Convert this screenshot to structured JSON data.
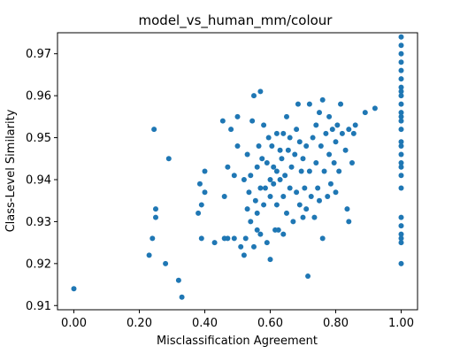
{
  "chart_data": {
    "type": "scatter",
    "title": "model_vs_human_mm/colour",
    "xlabel": "Misclassification Agreement",
    "ylabel": "Class-Level Similarity",
    "xlim": [
      -0.05,
      1.05
    ],
    "ylim": [
      0.909,
      0.975
    ],
    "xticks": [
      0.0,
      0.2,
      0.4,
      0.6,
      0.8,
      1.0
    ],
    "xtick_labels": [
      "0.00",
      "0.20",
      "0.40",
      "0.60",
      "0.80",
      "1.00"
    ],
    "yticks": [
      0.91,
      0.92,
      0.93,
      0.94,
      0.95,
      0.96,
      0.97
    ],
    "ytick_labels": [
      "0.91",
      "0.92",
      "0.93",
      "0.94",
      "0.95",
      "0.96",
      "0.97"
    ],
    "grid": false,
    "marker_color": "#1f77b4",
    "points": [
      [
        0.0,
        0.914
      ],
      [
        0.23,
        0.922
      ],
      [
        0.24,
        0.926
      ],
      [
        0.245,
        0.952
      ],
      [
        0.25,
        0.933
      ],
      [
        0.25,
        0.931
      ],
      [
        0.28,
        0.92
      ],
      [
        0.29,
        0.945
      ],
      [
        0.32,
        0.916
      ],
      [
        0.33,
        0.912
      ],
      [
        0.38,
        0.932
      ],
      [
        0.385,
        0.939
      ],
      [
        0.39,
        0.926
      ],
      [
        0.39,
        0.934
      ],
      [
        0.4,
        0.942
      ],
      [
        0.4,
        0.937
      ],
      [
        0.43,
        0.925
      ],
      [
        0.455,
        0.954
      ],
      [
        0.46,
        0.936
      ],
      [
        0.46,
        0.926
      ],
      [
        0.47,
        0.926
      ],
      [
        0.47,
        0.943
      ],
      [
        0.48,
        0.952
      ],
      [
        0.49,
        0.926
      ],
      [
        0.49,
        0.941
      ],
      [
        0.5,
        0.948
      ],
      [
        0.5,
        0.955
      ],
      [
        0.51,
        0.924
      ],
      [
        0.52,
        0.922
      ],
      [
        0.52,
        0.94
      ],
      [
        0.525,
        0.926
      ],
      [
        0.53,
        0.946
      ],
      [
        0.53,
        0.933
      ],
      [
        0.535,
        0.937
      ],
      [
        0.54,
        0.93
      ],
      [
        0.54,
        0.941
      ],
      [
        0.545,
        0.954
      ],
      [
        0.55,
        0.924
      ],
      [
        0.55,
        0.96
      ],
      [
        0.555,
        0.935
      ],
      [
        0.56,
        0.932
      ],
      [
        0.56,
        0.928
      ],
      [
        0.56,
        0.943
      ],
      [
        0.565,
        0.948
      ],
      [
        0.57,
        0.961
      ],
      [
        0.57,
        0.927
      ],
      [
        0.57,
        0.938
      ],
      [
        0.575,
        0.945
      ],
      [
        0.58,
        0.953
      ],
      [
        0.58,
        0.934
      ],
      [
        0.585,
        0.938
      ],
      [
        0.59,
        0.925
      ],
      [
        0.59,
        0.944
      ],
      [
        0.595,
        0.95
      ],
      [
        0.6,
        0.921
      ],
      [
        0.6,
        0.94
      ],
      [
        0.6,
        0.936
      ],
      [
        0.605,
        0.948
      ],
      [
        0.61,
        0.943
      ],
      [
        0.61,
        0.939
      ],
      [
        0.615,
        0.928
      ],
      [
        0.62,
        0.951
      ],
      [
        0.62,
        0.942
      ],
      [
        0.62,
        0.934
      ],
      [
        0.625,
        0.928
      ],
      [
        0.63,
        0.947
      ],
      [
        0.63,
        0.94
      ],
      [
        0.635,
        0.945
      ],
      [
        0.64,
        0.951
      ],
      [
        0.64,
        0.936
      ],
      [
        0.64,
        0.927
      ],
      [
        0.645,
        0.941
      ],
      [
        0.65,
        0.955
      ],
      [
        0.65,
        0.932
      ],
      [
        0.655,
        0.947
      ],
      [
        0.66,
        0.95
      ],
      [
        0.66,
        0.938
      ],
      [
        0.665,
        0.943
      ],
      [
        0.67,
        0.93
      ],
      [
        0.675,
        0.946
      ],
      [
        0.68,
        0.952
      ],
      [
        0.68,
        0.937
      ],
      [
        0.685,
        0.958
      ],
      [
        0.69,
        0.934
      ],
      [
        0.69,
        0.949
      ],
      [
        0.695,
        0.942
      ],
      [
        0.7,
        0.931
      ],
      [
        0.7,
        0.945
      ],
      [
        0.705,
        0.938
      ],
      [
        0.71,
        0.948
      ],
      [
        0.71,
        0.933
      ],
      [
        0.715,
        0.917
      ],
      [
        0.72,
        0.958
      ],
      [
        0.72,
        0.942
      ],
      [
        0.725,
        0.936
      ],
      [
        0.73,
        0.95
      ],
      [
        0.735,
        0.931
      ],
      [
        0.74,
        0.944
      ],
      [
        0.74,
        0.953
      ],
      [
        0.745,
        0.938
      ],
      [
        0.75,
        0.956
      ],
      [
        0.75,
        0.935
      ],
      [
        0.755,
        0.948
      ],
      [
        0.76,
        0.926
      ],
      [
        0.76,
        0.959
      ],
      [
        0.765,
        0.942
      ],
      [
        0.77,
        0.951
      ],
      [
        0.775,
        0.936
      ],
      [
        0.78,
        0.946
      ],
      [
        0.78,
        0.955
      ],
      [
        0.785,
        0.939
      ],
      [
        0.79,
        0.952
      ],
      [
        0.795,
        0.944
      ],
      [
        0.8,
        0.949
      ],
      [
        0.8,
        0.937
      ],
      [
        0.805,
        0.953
      ],
      [
        0.81,
        0.942
      ],
      [
        0.815,
        0.958
      ],
      [
        0.82,
        0.951
      ],
      [
        0.83,
        0.947
      ],
      [
        0.835,
        0.933
      ],
      [
        0.84,
        0.952
      ],
      [
        0.84,
        0.93
      ],
      [
        0.85,
        0.944
      ],
      [
        0.855,
        0.951
      ],
      [
        0.86,
        0.953
      ],
      [
        0.89,
        0.956
      ],
      [
        0.92,
        0.957
      ],
      [
        1.0,
        0.974
      ],
      [
        1.0,
        0.972
      ],
      [
        1.0,
        0.97
      ],
      [
        1.0,
        0.968
      ],
      [
        1.0,
        0.966
      ],
      [
        1.0,
        0.964
      ],
      [
        1.0,
        0.962
      ],
      [
        1.0,
        0.961
      ],
      [
        1.0,
        0.96
      ],
      [
        1.0,
        0.958
      ],
      [
        1.0,
        0.956
      ],
      [
        1.0,
        0.955
      ],
      [
        1.0,
        0.954
      ],
      [
        1.0,
        0.952
      ],
      [
        1.0,
        0.949
      ],
      [
        1.0,
        0.948
      ],
      [
        1.0,
        0.946
      ],
      [
        1.0,
        0.944
      ],
      [
        1.0,
        0.943
      ],
      [
        1.0,
        0.941
      ],
      [
        1.0,
        0.938
      ],
      [
        1.0,
        0.931
      ],
      [
        1.0,
        0.929
      ],
      [
        1.0,
        0.927
      ],
      [
        1.0,
        0.926
      ],
      [
        1.0,
        0.925
      ],
      [
        1.0,
        0.92
      ]
    ]
  }
}
